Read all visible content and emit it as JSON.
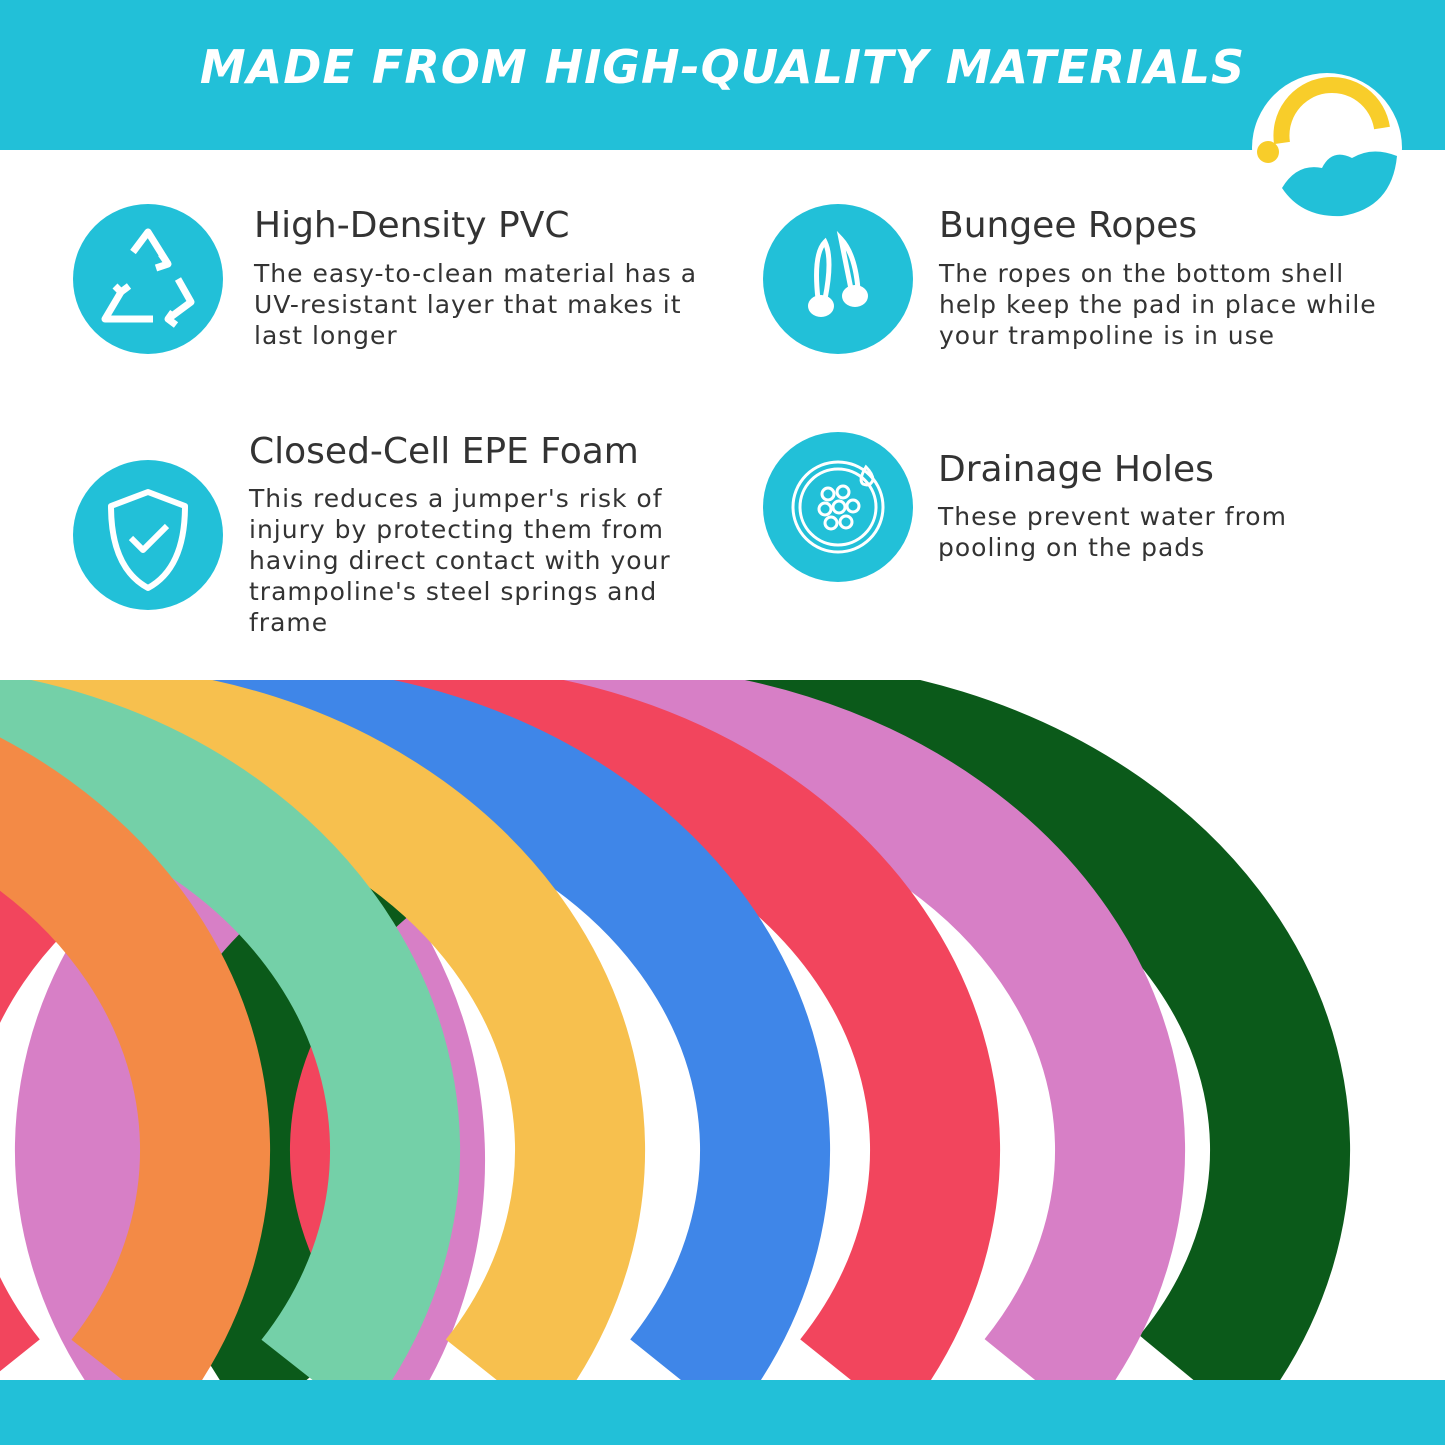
{
  "header": {
    "title": "MADE FROM HIGH-QUALITY MATERIALS",
    "brand_color": "#22c0d8"
  },
  "logo": {
    "icon": "rainbow-cloud-logo"
  },
  "features": [
    {
      "title": "High-Density PVC",
      "body": "The easy-to-clean material has a UV-resistant layer that makes it last longer",
      "icon": "recycle-icon"
    },
    {
      "title": "Bungee Ropes",
      "body": "The ropes on the bottom shell help keep the pad in place while your trampoline is in use",
      "icon": "bungee-rope-icon"
    },
    {
      "title": "Closed-Cell EPE Foam",
      "body": "This reduces a jumper's risk of injury by protecting them from having direct contact with your trampoline's steel springs and frame",
      "icon": "shield-check-icon"
    },
    {
      "title": "Drainage Holes",
      "body": "These prevent water from pooling on the pads",
      "icon": "drainage-holes-icon"
    }
  ],
  "pad_colors": [
    "#0b5a1a",
    "#d77fc6",
    "#f2455d",
    "#3f86e8",
    "#f7c04e",
    "#74d0a8",
    "#f38a46"
  ]
}
